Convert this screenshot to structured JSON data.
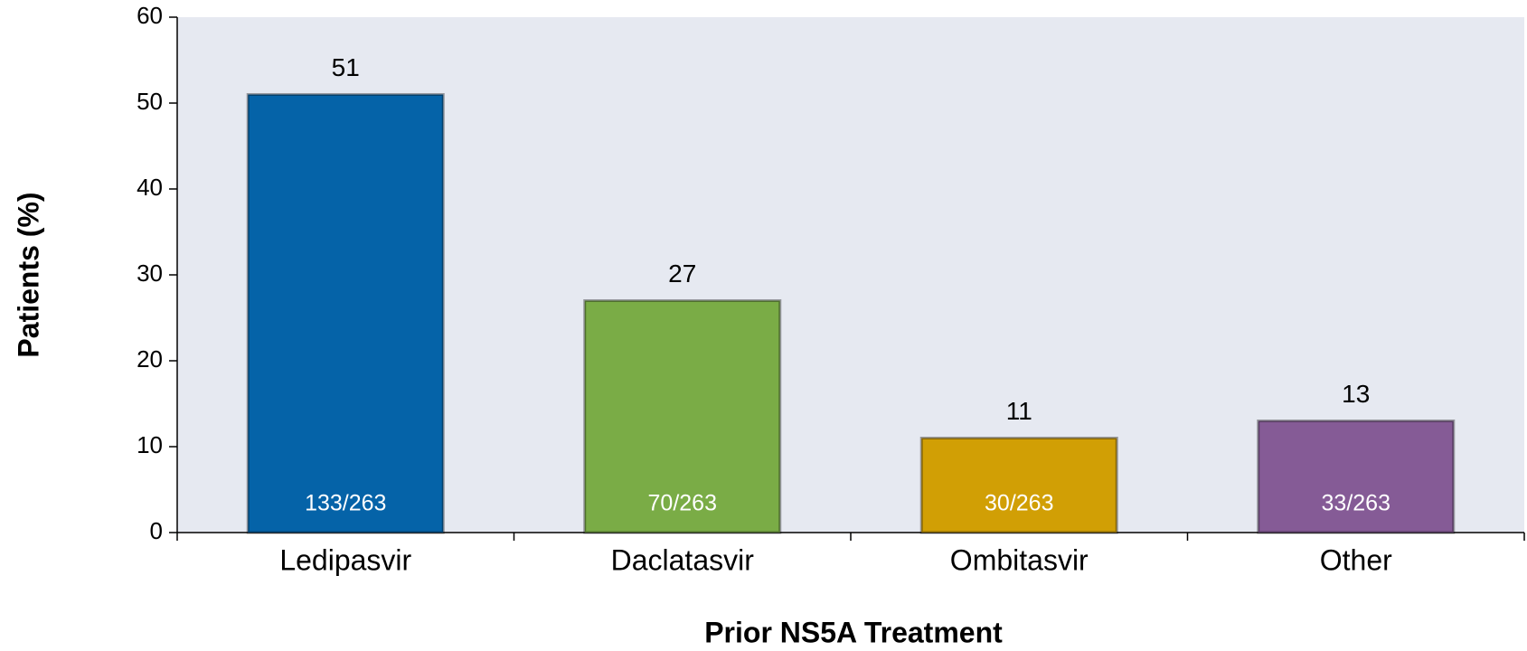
{
  "chart_data": {
    "type": "bar",
    "categories": [
      "Ledipasvir",
      "Daclatasvir",
      "Ombitasvir",
      "Other"
    ],
    "values": [
      51,
      27,
      11,
      13
    ],
    "bar_labels": [
      "133/263",
      "70/263",
      "30/263",
      "33/263"
    ],
    "colors": [
      "#0563a8",
      "#7aac46",
      "#d19f05",
      "#855b96"
    ],
    "ylabel": "Patients (%)",
    "xlabel": "Prior NS5A Treatment",
    "ylim": [
      0,
      60
    ],
    "yticks": [
      0,
      10,
      20,
      30,
      40,
      50,
      60
    ],
    "grid": false
  }
}
